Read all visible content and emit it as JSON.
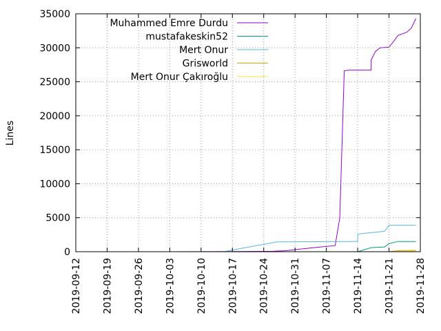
{
  "chart_data": {
    "type": "line",
    "title": "",
    "xlabel": "",
    "ylabel": "Lines",
    "ylim": [
      0,
      35000
    ],
    "xlim": [
      "2019-09-12",
      "2019-11-28"
    ],
    "yticks": [
      "0",
      "5000",
      "10000",
      "15000",
      "20000",
      "25000",
      "30000",
      "35000"
    ],
    "xticks": [
      "2019-09-12",
      "2019-09-19",
      "2019-09-26",
      "2019-10-03",
      "2019-10-10",
      "2019-10-17",
      "2019-10-24",
      "2019-10-31",
      "2019-11-07",
      "2019-11-14",
      "2019-11-21",
      "2019-11-28"
    ],
    "grid": true,
    "legend_position": "top-left",
    "series": [
      {
        "name": "Muhammed Emre Durdu",
        "color": "#9400d3",
        "points": [
          [
            "2019-10-03",
            0
          ],
          [
            "2019-10-17",
            20
          ],
          [
            "2019-10-26",
            60
          ],
          [
            "2019-10-29",
            150
          ],
          [
            "2019-10-31",
            300
          ],
          [
            "2019-11-05",
            650
          ],
          [
            "2019-11-09",
            900
          ],
          [
            "2019-11-09",
            1000
          ],
          [
            "2019-11-10",
            5000
          ],
          [
            "2019-11-11",
            26600
          ],
          [
            "2019-11-12",
            26700
          ],
          [
            "2019-11-17",
            26700
          ],
          [
            "2019-11-17",
            28200
          ],
          [
            "2019-11-18",
            29500
          ],
          [
            "2019-11-19",
            30000
          ],
          [
            "2019-11-21",
            30100
          ],
          [
            "2019-11-22",
            30900
          ],
          [
            "2019-11-23",
            31800
          ],
          [
            "2019-11-25",
            32300
          ],
          [
            "2019-11-26",
            32900
          ],
          [
            "2019-11-27",
            34300
          ]
        ]
      },
      {
        "name": "mustafakeskin52",
        "color": "#009e73",
        "points": [
          [
            "2019-11-14",
            0
          ],
          [
            "2019-11-17",
            600
          ],
          [
            "2019-11-20",
            700
          ],
          [
            "2019-11-21",
            1200
          ],
          [
            "2019-11-23",
            1500
          ],
          [
            "2019-11-27",
            1500
          ]
        ]
      },
      {
        "name": "Mert Onur",
        "color": "#56b4e9",
        "points": [
          [
            "2019-10-15",
            0
          ],
          [
            "2019-10-27",
            1450
          ],
          [
            "2019-11-14",
            1500
          ],
          [
            "2019-11-14",
            2600
          ],
          [
            "2019-11-17",
            2800
          ],
          [
            "2019-11-20",
            3000
          ],
          [
            "2019-11-21",
            3900
          ],
          [
            "2019-11-27",
            3900
          ]
        ]
      },
      {
        "name": "Grisworld",
        "color": "#e69f00",
        "points": [
          [
            "2019-11-21",
            0
          ],
          [
            "2019-11-23",
            150
          ],
          [
            "2019-11-27",
            200
          ]
        ]
      },
      {
        "name": "Mert Onur Çakıroğlu",
        "color": "#f0e442",
        "points": [
          [
            "2019-11-22",
            0
          ],
          [
            "2019-11-24",
            80
          ],
          [
            "2019-11-27",
            100
          ]
        ]
      }
    ]
  }
}
